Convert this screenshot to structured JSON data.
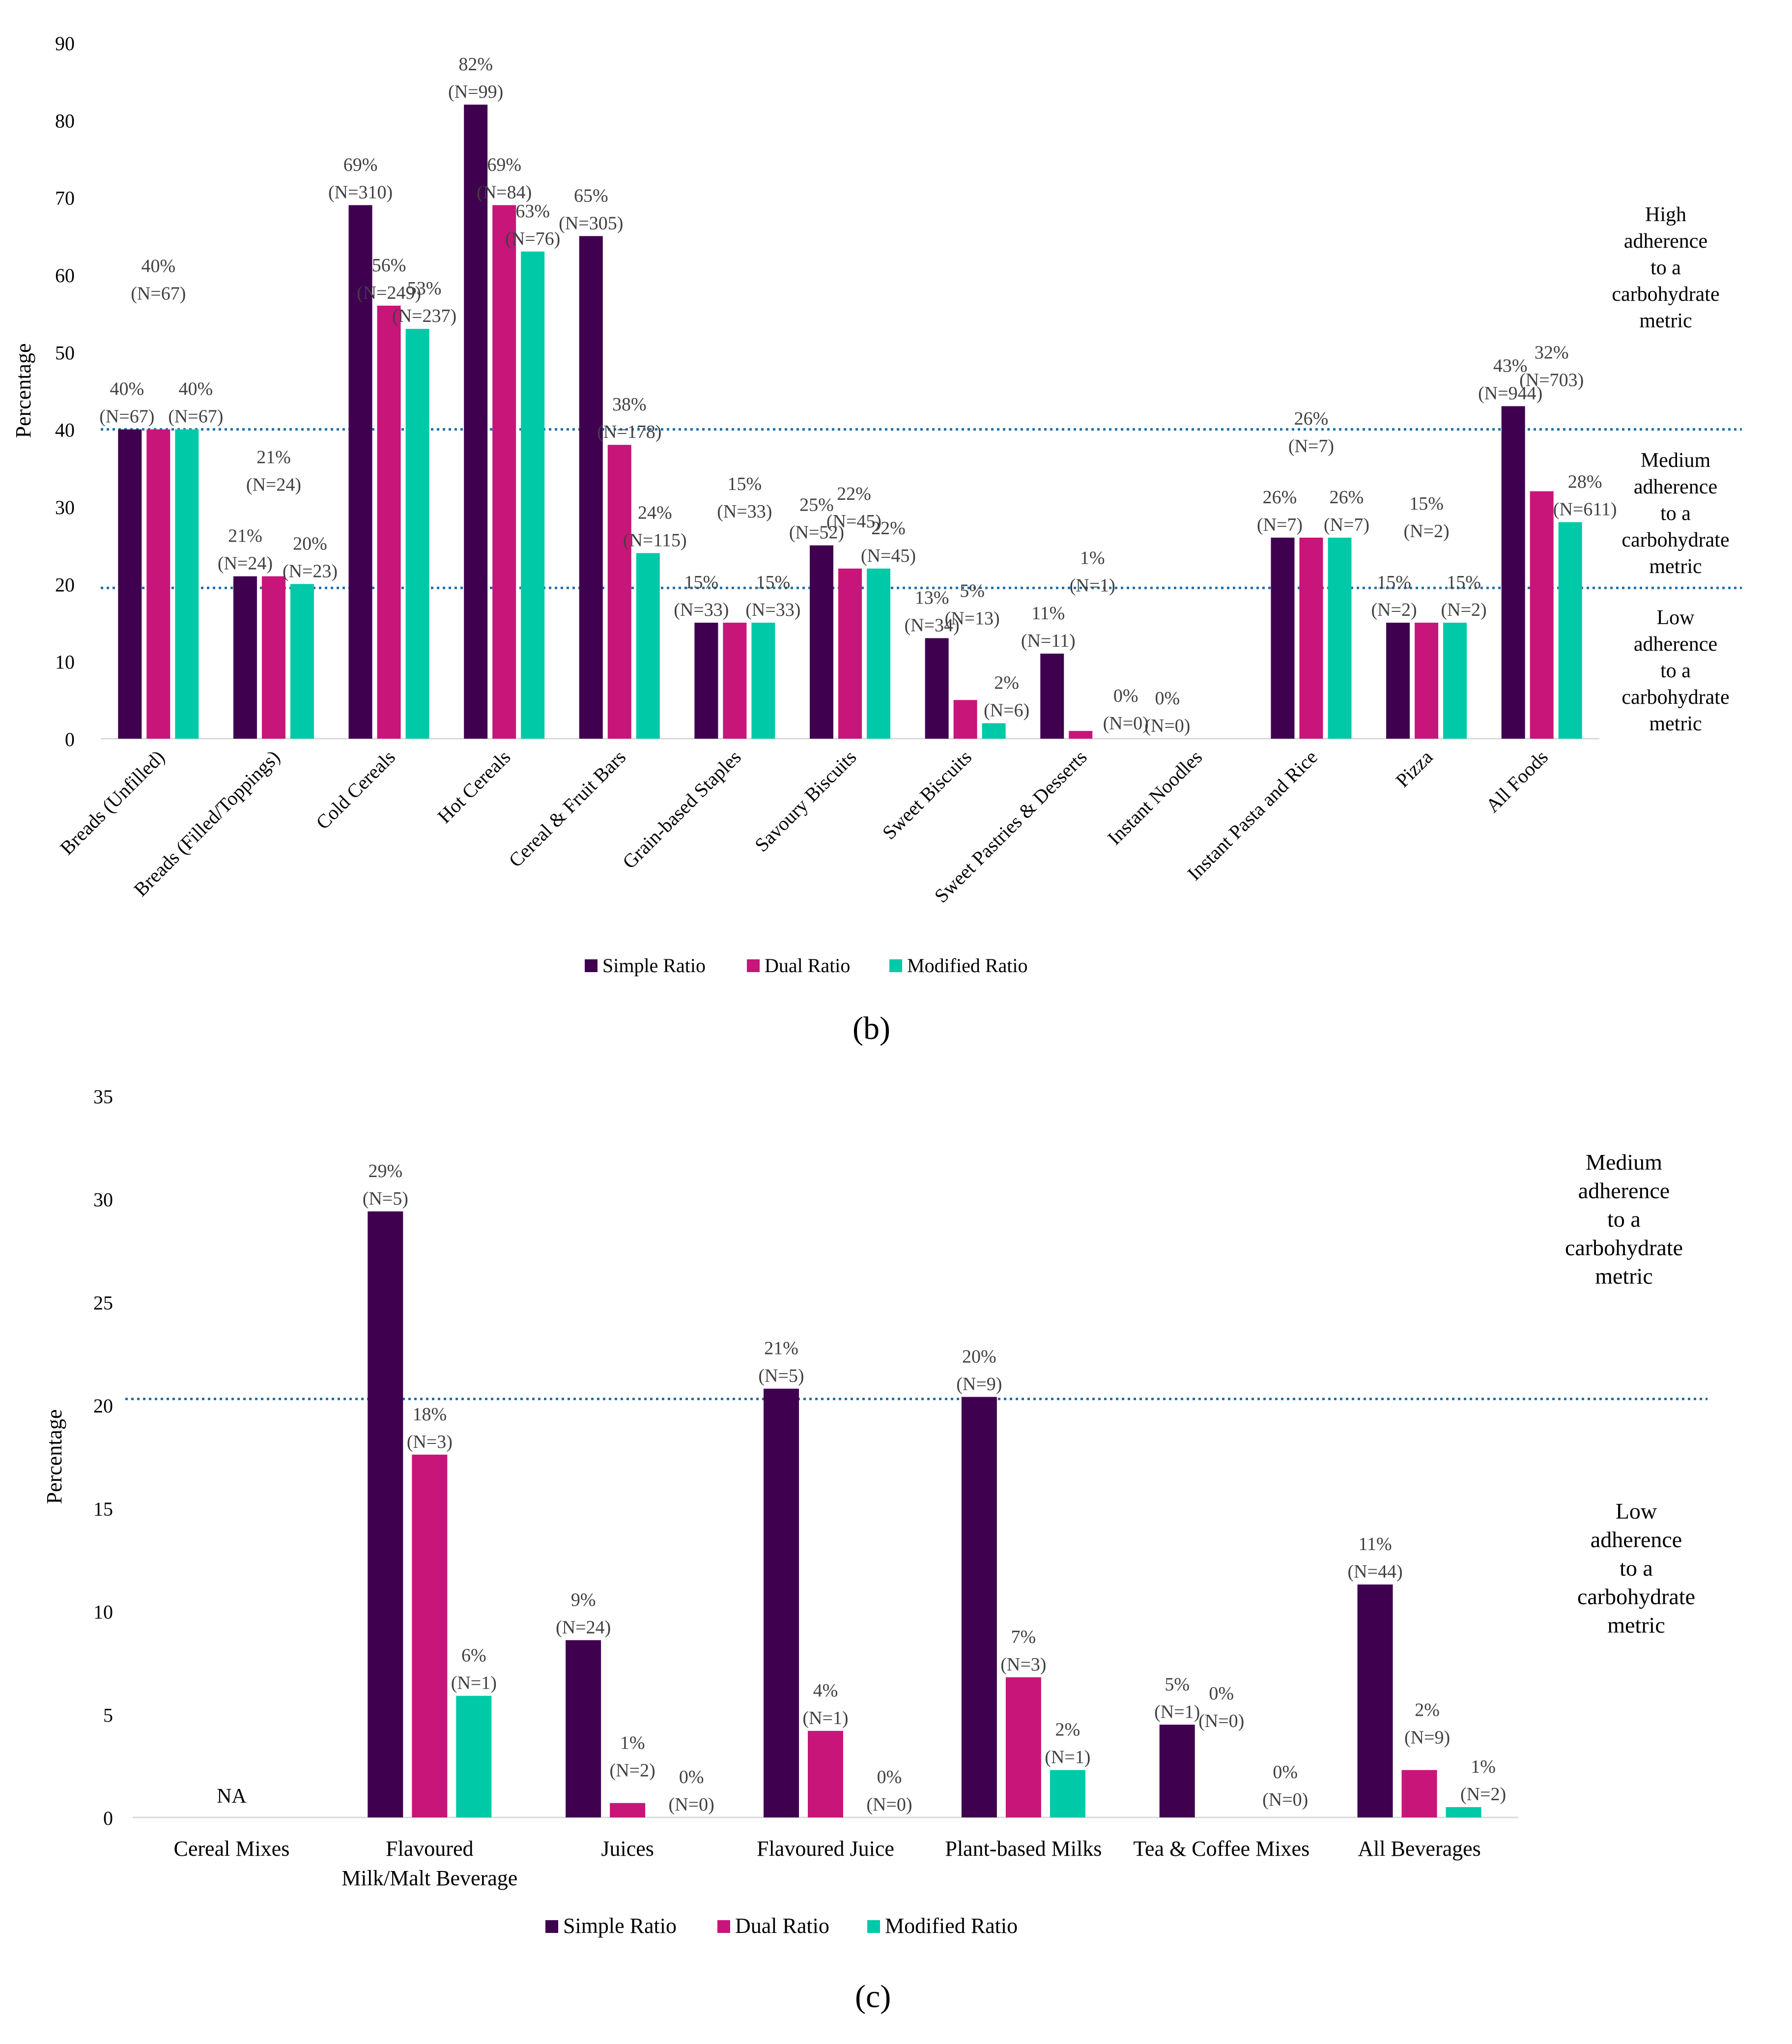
{
  "colors": {
    "simple": "#3f0050",
    "dual": "#c8157a",
    "modified": "#00c9a7",
    "threshold": "#1f6fa8",
    "text": "#404040",
    "label": "#404040"
  },
  "panels": [
    {
      "caption": "(b)",
      "ylabel": "Percentage",
      "ylim": [
        0,
        90
      ],
      "yticks": [
        "0",
        "10",
        "20",
        "30",
        "40",
        "50",
        "60",
        "70",
        "80",
        "90"
      ],
      "thresholds": [
        40,
        19.5
      ],
      "zones": [
        {
          "lines": [
            "High",
            "adherence",
            "to a",
            "carbohydrate",
            "metric"
          ]
        },
        {
          "lines": [
            "Medium",
            "adherence",
            "to a",
            "carbohydrate",
            "metric"
          ]
        },
        {
          "lines": [
            "Low",
            "adherence",
            "to a",
            "carbohydrate",
            "metric"
          ]
        }
      ],
      "legend": [
        "Simple Ratio",
        "Dual Ratio",
        "Modified Ratio"
      ]
    },
    {
      "caption": "(c)",
      "ylabel": "Percentage",
      "ylim": [
        0,
        35
      ],
      "yticks": [
        "0",
        "5",
        "10",
        "15",
        "20",
        "25",
        "30",
        "35"
      ],
      "thresholds": [
        20.3
      ],
      "zones": [
        {
          "lines": [
            "Medium",
            "adherence",
            "to a",
            "carbohydrate",
            "metric"
          ]
        },
        {
          "lines": [
            "Low",
            "adherence",
            "to a",
            "carbohydrate",
            "metric"
          ]
        }
      ],
      "legend": [
        "Simple Ratio",
        "Dual Ratio",
        "Modified Ratio"
      ]
    }
  ],
  "chart_data": [
    {
      "type": "bar",
      "title": "(b)",
      "ylabel": "Percentage",
      "ylim": [
        0,
        90
      ],
      "categories": [
        "Breads (Unfilled)",
        "Breads (Filled/Toppings)",
        "Cold Cereals",
        "Hot Cereals",
        "Cereal & Fruit Bars",
        "Grain-based Staples",
        "Savoury Biscuits",
        "Sweet Biscuits",
        "Sweet Pastries & Desserts",
        "Instant Noodles",
        "Instant Pasta and Rice",
        "Pizza",
        "All Foods"
      ],
      "series": [
        {
          "name": "Simple Ratio",
          "values": [
            40,
            21,
            69,
            82,
            65,
            15,
            25,
            13,
            11,
            0,
            26,
            15,
            43
          ],
          "labels": [
            [
              "40%",
              "(N=67)"
            ],
            [
              "21%",
              "(N=24)"
            ],
            [
              "69%",
              "(N=310)"
            ],
            [
              "82%",
              "(N=99)"
            ],
            [
              "65%",
              "(N=305)"
            ],
            [
              "15%",
              "(N=33)"
            ],
            [
              "25%",
              "(N=52)"
            ],
            [
              "13%",
              "(N=34)"
            ],
            [
              "11%",
              "(N=11)"
            ],
            [
              "0%",
              "(N=0)"
            ],
            [
              "26%",
              "(N=7)"
            ],
            [
              "15%",
              "(N=2)"
            ],
            [
              "43%",
              "(N=944)"
            ]
          ]
        },
        {
          "name": "Dual Ratio",
          "values": [
            40,
            21,
            56,
            69,
            38,
            15,
            22,
            5,
            1,
            0,
            26,
            15,
            32
          ],
          "labels": [
            [
              "40%",
              "(N=67)"
            ],
            [
              "21%",
              "(N=24)"
            ],
            [
              "56%",
              "(N=249)"
            ],
            [
              "69%",
              "(N=84)"
            ],
            [
              "38%",
              "(N=178)"
            ],
            [
              "15%",
              "(N=33)"
            ],
            [
              "22%",
              "(N=45)"
            ],
            [
              "5%",
              "(N=13)"
            ],
            [
              "1%",
              "(N=1)"
            ],
            null,
            [
              "26%",
              "(N=7)"
            ],
            [
              "15%",
              "(N=2)"
            ],
            [
              "32%",
              "(N=703)"
            ]
          ]
        },
        {
          "name": "Modified Ratio",
          "values": [
            40,
            20,
            53,
            63,
            24,
            15,
            22,
            2,
            0,
            0,
            26,
            15,
            28
          ],
          "labels": [
            [
              "40%",
              "(N=67)"
            ],
            [
              "20%",
              "(N=23)"
            ],
            [
              "53%",
              "(N=237)"
            ],
            [
              "63%",
              "(N=76)"
            ],
            [
              "24%",
              "(N=115)"
            ],
            [
              "15%",
              "(N=33)"
            ],
            [
              "22%",
              "(N=45)"
            ],
            [
              "2%",
              "(N=6)"
            ],
            [
              "0%",
              "(N=0)"
            ],
            null,
            [
              "26%",
              "(N=7)"
            ],
            [
              "15%",
              "(N=2)"
            ],
            [
              "28%",
              "(N=611)"
            ]
          ]
        }
      ]
    },
    {
      "type": "bar",
      "title": "(c)",
      "ylabel": "Percentage",
      "ylim": [
        0,
        35
      ],
      "categories": [
        "Cereal Mixes",
        "Flavoured Milk/Malt Beverage",
        "Juices",
        "Flavoured Juice",
        "Plant-based Milks",
        "Tea & Coffee Mixes",
        "All Beverages"
      ],
      "category_lines": [
        [
          "Cereal Mixes"
        ],
        [
          "Flavoured",
          "Milk/Malt Beverage"
        ],
        [
          "Juices"
        ],
        [
          "Flavoured Juice"
        ],
        [
          "Plant-based Milks"
        ],
        [
          "Tea & Coffee Mixes"
        ],
        [
          "All Beverages"
        ]
      ],
      "annotations": [
        {
          "category": "Cereal Mixes",
          "text": "NA"
        }
      ],
      "series": [
        {
          "name": "Simple Ratio",
          "values": [
            null,
            29.4,
            8.6,
            20.8,
            20.4,
            4.5,
            11.3
          ],
          "labels": [
            null,
            [
              "29%",
              "(N=5)"
            ],
            [
              "9%",
              "(N=24)"
            ],
            [
              "21%",
              "(N=5)"
            ],
            [
              "20%",
              "(N=9)"
            ],
            [
              "5%",
              "(N=1)"
            ],
            [
              "11%",
              "(N=44)"
            ]
          ]
        },
        {
          "name": "Dual Ratio",
          "values": [
            null,
            17.6,
            0.7,
            4.2,
            6.8,
            0,
            2.3
          ],
          "labels": [
            null,
            [
              "18%",
              "(N=3)"
            ],
            [
              "1%",
              "(N=2)"
            ],
            [
              "4%",
              "(N=1)"
            ],
            [
              "7%",
              "(N=3)"
            ],
            [
              "0%",
              "(N=0)"
            ],
            [
              "2%",
              "(N=9)"
            ]
          ]
        },
        {
          "name": "Modified Ratio",
          "values": [
            null,
            5.9,
            0,
            0,
            2.3,
            0,
            0.5
          ],
          "labels": [
            null,
            [
              "6%",
              "(N=1)"
            ],
            [
              "0%",
              "(N=0)"
            ],
            [
              "0%",
              "(N=0)"
            ],
            [
              "2%",
              "(N=1)"
            ],
            [
              "0%",
              "(N=0)"
            ],
            [
              "1%",
              "(N=2)"
            ]
          ]
        }
      ]
    }
  ]
}
